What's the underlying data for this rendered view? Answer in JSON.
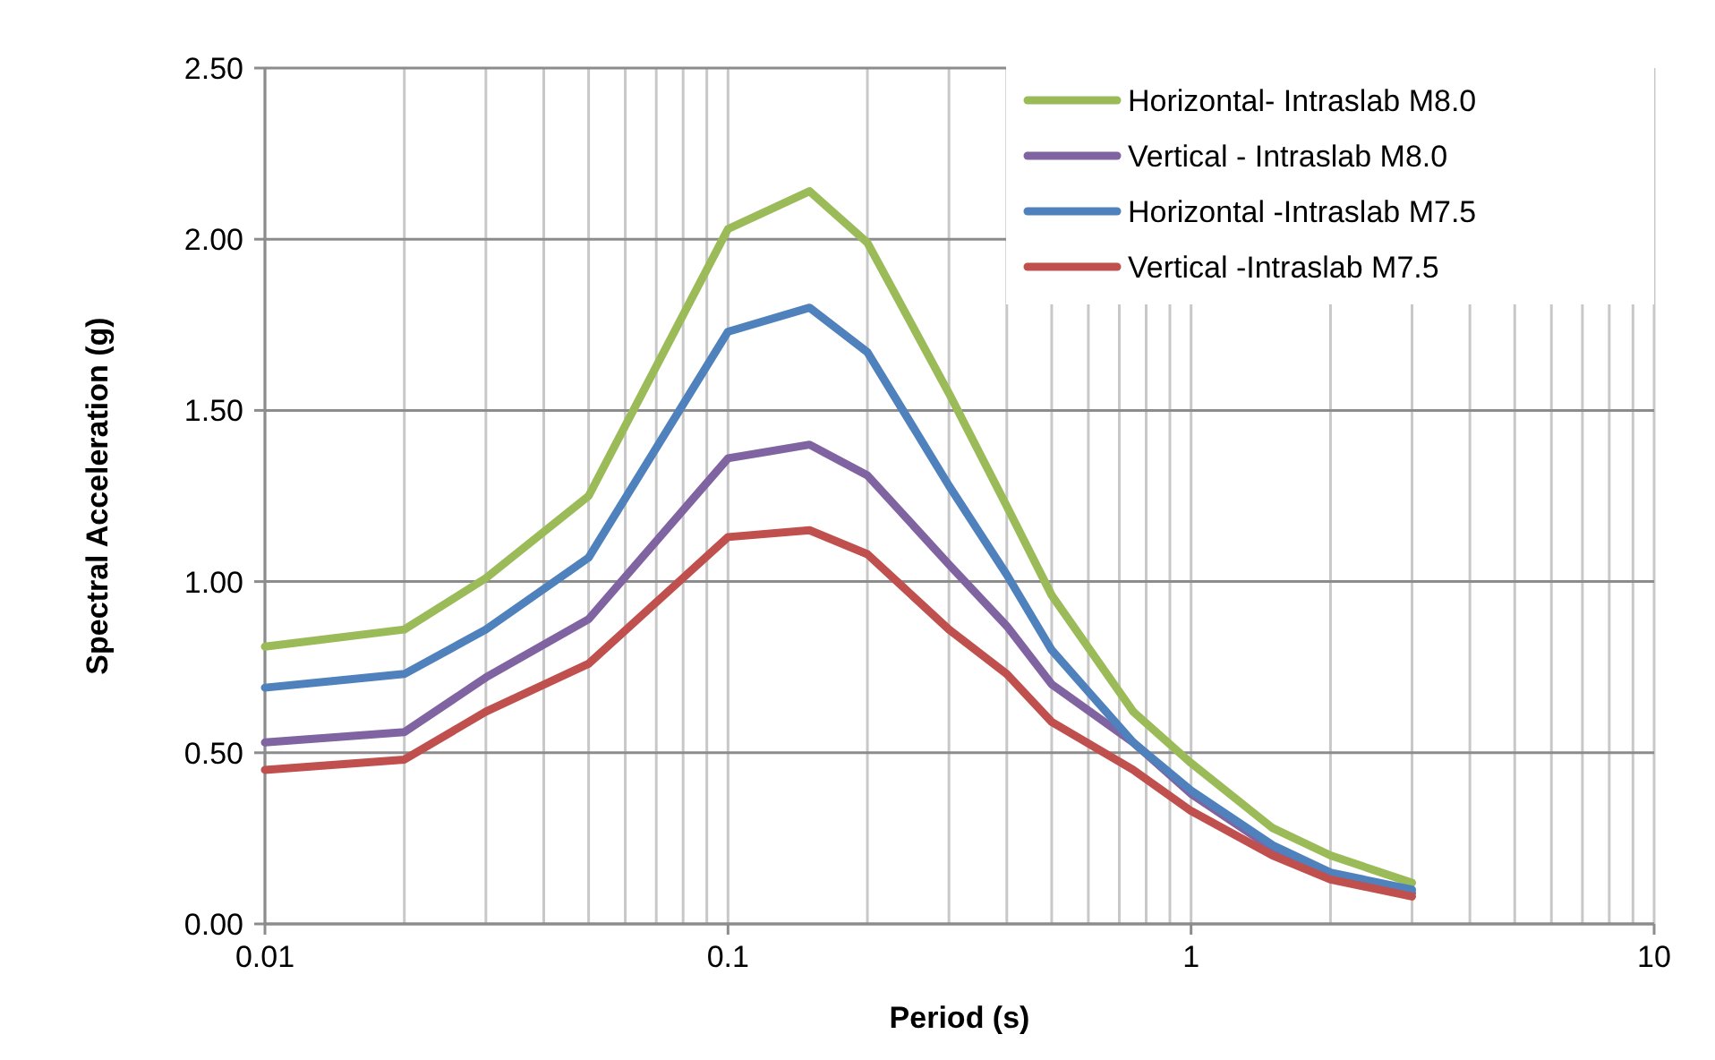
{
  "chart_data": {
    "type": "line",
    "xlabel": "Period (s)",
    "ylabel": "Spectral Acceleration (g)",
    "x": [
      0.01,
      0.02,
      0.03,
      0.05,
      0.1,
      0.15,
      0.2,
      0.3,
      0.4,
      0.5,
      0.75,
      1,
      1.5,
      2,
      3
    ],
    "log": "x",
    "xlim": [
      0.01,
      10
    ],
    "xticks": [
      0.01,
      0.1,
      1,
      10
    ],
    "ylim": [
      0,
      2.5
    ],
    "yticks": [
      {
        "value": 0,
        "label": "0.00"
      },
      {
        "value": 0.5,
        "label": "0.50"
      },
      {
        "value": 1,
        "label": "1.00"
      },
      {
        "value": 1.5,
        "label": "1.50"
      },
      {
        "value": 2,
        "label": "2.00"
      },
      {
        "value": 2.5,
        "label": "2.50"
      }
    ],
    "grid": true,
    "legend": "top right",
    "marker": "none",
    "line_style": "solid",
    "series": [
      {
        "name": "Horizontal- Intraslab M8.0",
        "color": "#9bbb59",
        "values": [
          0.81,
          0.86,
          1.01,
          1.25,
          2.03,
          2.14,
          1.99,
          1.55,
          1.22,
          0.96,
          0.62,
          0.47,
          0.28,
          0.2,
          0.12
        ]
      },
      {
        "name": "Vertical - Intraslab M8.0",
        "color": "#8064a2",
        "values": [
          0.53,
          0.56,
          0.72,
          0.89,
          1.36,
          1.4,
          1.31,
          1.05,
          0.87,
          0.7,
          0.53,
          0.38,
          0.22,
          0.14,
          0.09
        ]
      },
      {
        "name": "Horizontal -Intraslab M7.5",
        "color": "#4f81bd",
        "values": [
          0.69,
          0.73,
          0.86,
          1.07,
          1.73,
          1.8,
          1.67,
          1.28,
          1.02,
          0.8,
          0.53,
          0.39,
          0.23,
          0.15,
          0.1
        ]
      },
      {
        "name": "Vertical -Intraslab M7.5",
        "color": "#c0504d",
        "values": [
          0.45,
          0.48,
          0.62,
          0.76,
          1.13,
          1.15,
          1.08,
          0.86,
          0.73,
          0.59,
          0.45,
          0.33,
          0.2,
          0.13,
          0.08
        ]
      }
    ]
  }
}
